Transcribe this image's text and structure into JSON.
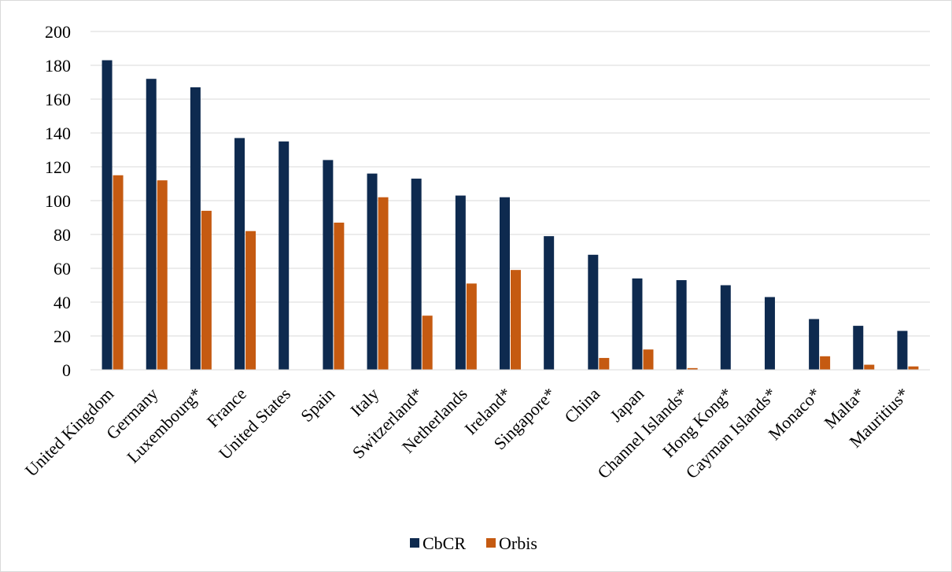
{
  "chart_data": {
    "type": "bar",
    "title": "",
    "xlabel": "",
    "ylabel": "",
    "ylim": [
      0,
      200
    ],
    "yticks": [
      0,
      20,
      40,
      60,
      80,
      100,
      120,
      140,
      160,
      180,
      200
    ],
    "grid": true,
    "legend_position": "bottom",
    "categories": [
      "United Kingdom",
      "Germany",
      "Luxembourg*",
      "France",
      "United States",
      "Spain",
      "Italy",
      "Switzerland*",
      "Netherlands",
      "Ireland*",
      "Singapore*",
      "China",
      "Japan",
      "Channel Islands*",
      "Hong Kong*",
      "Cayman Islands*",
      "Monaco*",
      "Malta*",
      "Mauritius*"
    ],
    "series": [
      {
        "name": "CbCR",
        "color": "#0e2a4f",
        "values": [
          183,
          172,
          167,
          137,
          135,
          124,
          116,
          113,
          103,
          102,
          79,
          68,
          54,
          53,
          50,
          43,
          30,
          26,
          23
        ]
      },
      {
        "name": "Orbis",
        "color": "#c55a11",
        "values": [
          115,
          112,
          94,
          82,
          0,
          87,
          102,
          32,
          51,
          59,
          0,
          7,
          12,
          1,
          0,
          0,
          8,
          3,
          2
        ]
      }
    ]
  }
}
